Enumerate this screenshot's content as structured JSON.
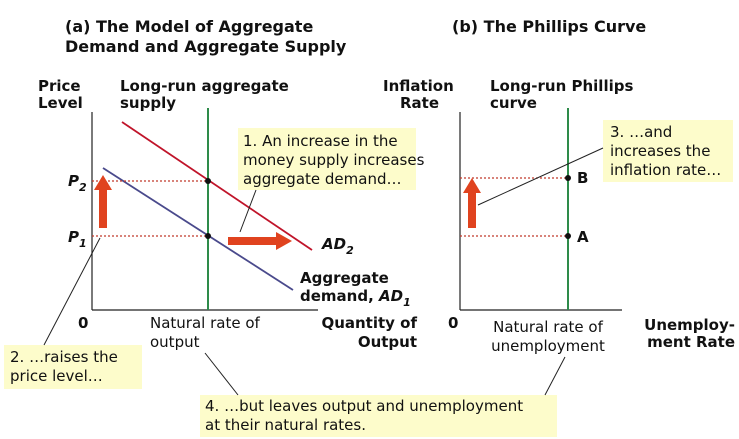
{
  "panel_a": {
    "title": [
      "(a) The Model of Aggregate",
      "Demand and Aggregate Supply"
    ],
    "y_axis_label": [
      "Price",
      "Level"
    ],
    "x_axis_label": [
      "Quantity of",
      "Output"
    ],
    "origin": "0",
    "lras_label": [
      "Long-run aggregate",
      "supply"
    ],
    "natural_rate_label": [
      "Natural rate of",
      "output"
    ],
    "p2": {
      "main": "P",
      "sub": "2"
    },
    "p1": {
      "main": "P",
      "sub": "1"
    },
    "ad2": {
      "main": "AD",
      "sub": "2"
    },
    "ad1": {
      "line1": "Aggregate",
      "line2": "demand, ",
      "main": "AD",
      "sub": "1"
    }
  },
  "panel_b": {
    "title": "(b) The Phillips Curve",
    "y_axis_label": [
      "Inflation",
      "Rate"
    ],
    "x_axis_label": [
      "Unemploy-",
      "ment Rate"
    ],
    "origin": "0",
    "lrpc_label": [
      "Long-run Phillips",
      "curve"
    ],
    "natural_rate_label": [
      "Natural rate of",
      "unemployment"
    ],
    "point_b": "B",
    "point_a": "A"
  },
  "callouts": [
    [
      "1. An increase in the",
      "money supply increases",
      "aggregate demand…"
    ],
    [
      "2. …raises the",
      "price level…"
    ],
    [
      "3. …and",
      "increases the",
      "inflation rate…"
    ],
    [
      "4. …but leaves output and unemployment",
      "at their natural rates."
    ]
  ]
}
